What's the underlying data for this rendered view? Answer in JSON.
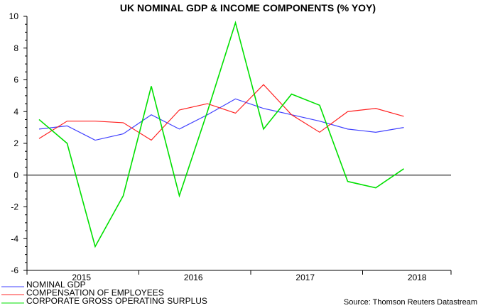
{
  "chart_data": {
    "type": "line",
    "title": "UK NOMINAL GDP & INCOME COMPONENTS (% YOY)",
    "source": "Source: Thomson Reuters Datastream",
    "x": [
      "2015Q1",
      "2015Q2",
      "2015Q3",
      "2015Q4",
      "2016Q1",
      "2016Q2",
      "2016Q3",
      "2016Q4",
      "2017Q1",
      "2017Q2",
      "2017Q3",
      "2017Q4",
      "2018Q1",
      "2018Q2"
    ],
    "x_tick_labels": [
      "2015",
      "2016",
      "2017",
      "2018"
    ],
    "ylim": [
      -6,
      10
    ],
    "y_ticks": [
      -6,
      -4,
      -2,
      0,
      2,
      4,
      6,
      8,
      10
    ],
    "grid": false,
    "legend_position": "bottom-left",
    "series": [
      {
        "name": "NOMINAL GDP",
        "color": "#4040ff",
        "values": [
          2.9,
          3.1,
          2.2,
          2.6,
          3.8,
          2.9,
          3.8,
          4.8,
          4.2,
          3.8,
          3.4,
          2.9,
          2.7,
          3.0
        ]
      },
      {
        "name": "COMPENSATION OF EMPLOYEES",
        "color": "#ff2020",
        "values": [
          2.3,
          3.4,
          3.4,
          3.3,
          2.2,
          4.1,
          4.5,
          3.9,
          5.7,
          3.8,
          2.7,
          4.0,
          4.2,
          3.7
        ]
      },
      {
        "name": "CORPORATE GROSS OPERATING SURPLUS",
        "color": "#00e000",
        "values": [
          3.5,
          2.0,
          -4.5,
          -1.3,
          5.6,
          -1.3,
          4.0,
          9.6,
          2.9,
          5.1,
          4.4,
          -0.4,
          -0.8,
          0.4
        ]
      }
    ]
  }
}
